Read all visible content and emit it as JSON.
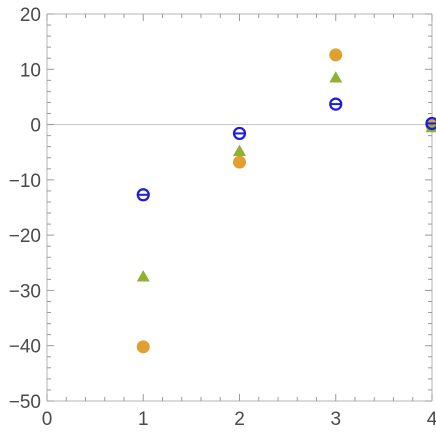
{
  "chart_data": {
    "type": "scatter",
    "title": "",
    "xlabel": "",
    "ylabel": "",
    "xlim": [
      0,
      4
    ],
    "ylim": [
      -50,
      20
    ],
    "x_ticks": [
      0,
      1,
      2,
      3,
      4
    ],
    "y_ticks": [
      20,
      10,
      0,
      -10,
      -20,
      -30,
      -40,
      -50
    ],
    "x_tick_labels": [
      "0",
      "1",
      "2",
      "3",
      "4"
    ],
    "y_tick_labels": [
      "20",
      "10",
      "0",
      "−10",
      "−20",
      "−30",
      "−40",
      "−50"
    ],
    "grid": false,
    "zero_line": true,
    "series": [
      {
        "marker": "circle-filled",
        "color": "#e0a030",
        "x": [
          1,
          2,
          3,
          4
        ],
        "y": [
          -40.2,
          -6.8,
          12.6,
          -0.2
        ]
      },
      {
        "marker": "triangle-filled",
        "color": "#8fb032",
        "x": [
          1,
          2,
          3,
          4
        ],
        "y": [
          -27.5,
          -4.8,
          8.5,
          -0.5
        ]
      },
      {
        "marker": "circle-open-bar",
        "color": "#1c1cdc",
        "x": [
          1,
          2,
          3,
          4
        ],
        "y": [
          -12.7,
          -1.6,
          3.7,
          0.2
        ]
      }
    ]
  }
}
